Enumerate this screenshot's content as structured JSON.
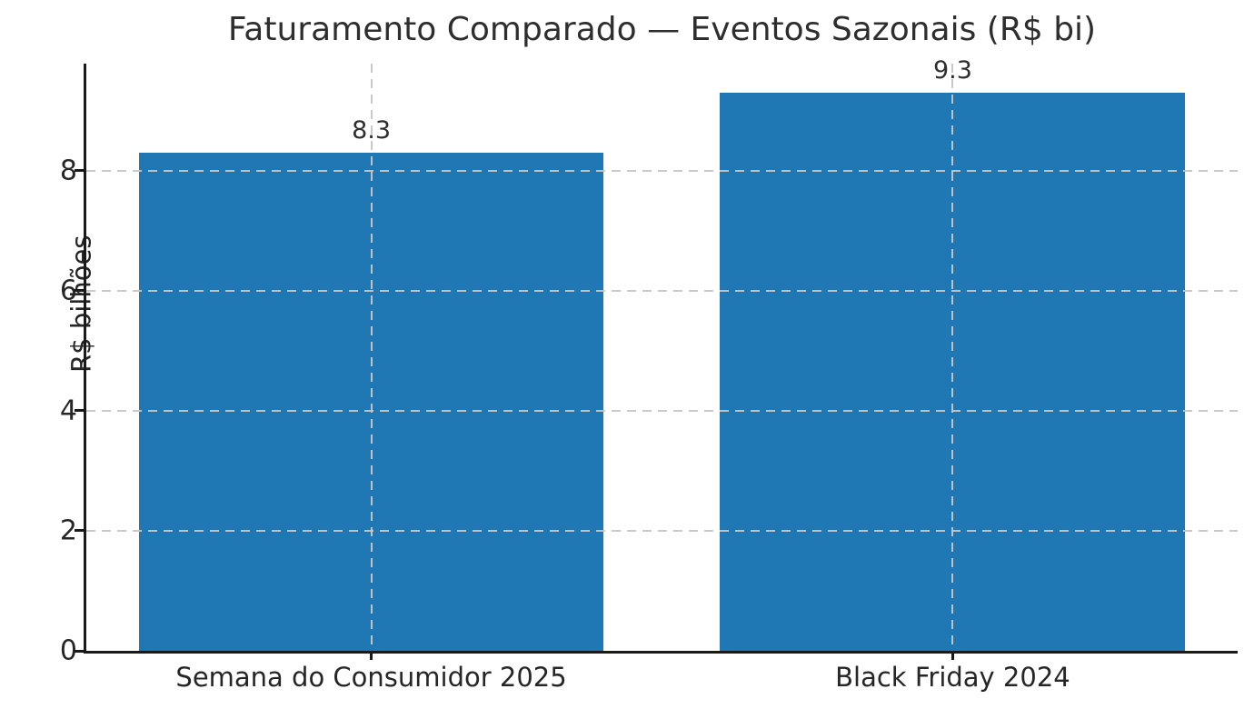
{
  "chart_data": {
    "type": "bar",
    "title": "Faturamento Comparado — Eventos Sazonais (R$ bi)",
    "categories": [
      "Semana do Consumidor 2025",
      "Black Friday 2024"
    ],
    "values": [
      8.3,
      9.3
    ],
    "value_labels": [
      "8.3",
      "9.3"
    ],
    "xlabel": "",
    "ylabel": "R$ bilhões",
    "ylim": [
      0,
      9.78
    ],
    "yticks": [
      0,
      2,
      4,
      6,
      8
    ],
    "bar_color": "#1f77b4",
    "grid": "dashed, light gray, drawn over bars; horizontal at y-ticks and vertical at bar centers",
    "legend": "none",
    "spines": "left and bottom only, black"
  }
}
